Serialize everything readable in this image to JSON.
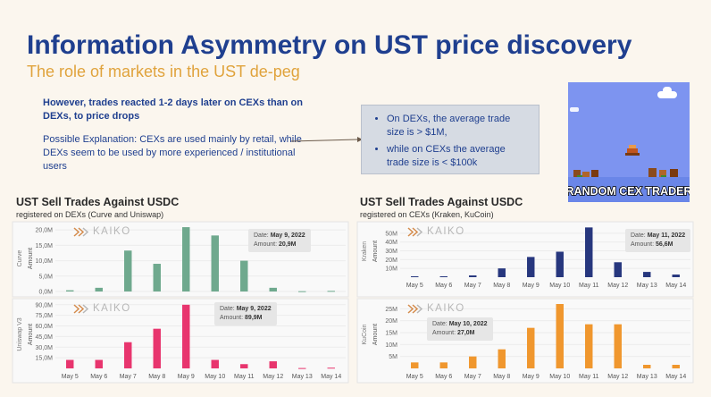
{
  "slide": {
    "title": "Information Asymmetry on UST price discovery",
    "subtitle": "The role of markets in the UST de-peg"
  },
  "left_text": {
    "bold": "However, trades reacted 1-2 days later on CEXs than on DEXs, to price drops",
    "explanation": "Possible Explanation: CEXs are used mainly by retail, while DEXs seem to be used by more experienced / institutional users"
  },
  "callout": {
    "bullets": [
      "On DEXs, the average trade size is > $1M,",
      "while on CEXs the average trade size is < $100k"
    ]
  },
  "meme": {
    "caption": "RANDOM CEX TRADER"
  },
  "colors": {
    "title_blue": "#1f3f8f",
    "subtitle_orange": "#e0a33c",
    "curve_green": "#6fa98e",
    "uniswap_pink": "#e8356e",
    "kraken_navy": "#27377e",
    "kucoin_orange": "#f0972e"
  },
  "panels": {
    "dex": {
      "title": "UST Sell Trades Against USDC",
      "subtitle": "registered on DEXs (Curve and Uniswap)",
      "x_labels": [
        "May 5",
        "May 6",
        "May 7",
        "May 8",
        "May 9",
        "May 10",
        "May 11",
        "May 12",
        "May 13",
        "May 14"
      ]
    },
    "cex": {
      "title": "UST Sell Trades Against USDC",
      "subtitle": "registered on CEXs (Kraken, KuCoin)",
      "x_labels": [
        "May 5",
        "May 6",
        "May 7",
        "May 8",
        "May 9",
        "May 10",
        "May 11",
        "May 12",
        "May 13",
        "May 14"
      ]
    }
  },
  "watermark": "KAIKO",
  "tooltips": {
    "curve": {
      "date_label": "Date:",
      "date": "May 9, 2022",
      "amount_label": "Amount:",
      "amount": "20,9M"
    },
    "uniswap": {
      "date_label": "Date:",
      "date": "May 9, 2022",
      "amount_label": "Amount:",
      "amount": "89,9M"
    },
    "kraken": {
      "date_label": "Date:",
      "date": "May 11, 2022",
      "amount_label": "Amount:",
      "amount": "56,6M"
    },
    "kucoin": {
      "date_label": "Date:",
      "date": "May 10, 2022",
      "amount_label": "Amount:",
      "amount": "27,0M"
    }
  },
  "chart_data": [
    {
      "type": "bar",
      "name": "Curve",
      "ylabel": "Amount",
      "yticks": [
        "0,0M",
        "5,0M",
        "10,0M",
        "15,0M",
        "20,0M"
      ],
      "ylim": [
        0,
        21.5
      ],
      "categories": [
        "May 5",
        "May 6",
        "May 7",
        "May 8",
        "May 9",
        "May 10",
        "May 11",
        "May 12",
        "May 13",
        "May 14"
      ],
      "values": [
        0.4,
        1.2,
        13.3,
        9.0,
        20.9,
        18.2,
        10.0,
        1.2,
        0.1,
        0.2
      ]
    },
    {
      "type": "bar",
      "name": "Uniswap V3",
      "ylabel": "Amount",
      "yticks": [
        "15,0M",
        "30,0M",
        "45,0M",
        "60,0M",
        "75,0M",
        "90,0M"
      ],
      "ylim": [
        0,
        96
      ],
      "categories": [
        "May 5",
        "May 6",
        "May 7",
        "May 8",
        "May 9",
        "May 10",
        "May 11",
        "May 12",
        "May 13",
        "May 14"
      ],
      "values": [
        12.0,
        12.0,
        37.0,
        56.0,
        89.9,
        12.0,
        6.0,
        10.0,
        0.5,
        1.0
      ]
    },
    {
      "type": "bar",
      "name": "Kraken",
      "ylabel": "Amount",
      "yticks": [
        "10M",
        "20M",
        "30M",
        "40M",
        "50M"
      ],
      "ylim": [
        0,
        59
      ],
      "categories": [
        "May 5",
        "May 6",
        "May 7",
        "May 8",
        "May 9",
        "May 10",
        "May 11",
        "May 12",
        "May 13",
        "May 14"
      ],
      "values": [
        1.0,
        1.0,
        2.0,
        10.0,
        23.0,
        29.0,
        56.6,
        17.0,
        6.0,
        3.0
      ]
    },
    {
      "type": "bar",
      "name": "KuCoin",
      "ylabel": "Amount",
      "yticks": [
        "5M",
        "10M",
        "15M",
        "20M",
        "25M"
      ],
      "ylim": [
        0,
        28.5
      ],
      "categories": [
        "May 5",
        "May 6",
        "May 7",
        "May 8",
        "May 9",
        "May 10",
        "May 11",
        "May 12",
        "May 13",
        "May 14"
      ],
      "values": [
        2.5,
        2.5,
        5.0,
        8.0,
        17.0,
        27.0,
        18.5,
        18.5,
        1.5,
        1.5
      ]
    }
  ]
}
